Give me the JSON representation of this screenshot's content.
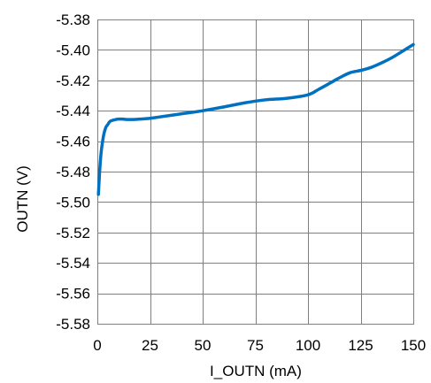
{
  "chart_data": {
    "type": "line",
    "title": "",
    "xlabel": "I_OUTN (mA)",
    "ylabel": "OUTN (V)",
    "xlim": [
      0,
      150
    ],
    "ylim": [
      -5.58,
      -5.38
    ],
    "x_ticks": [
      0,
      25,
      50,
      75,
      100,
      125,
      150
    ],
    "x_tick_labels": [
      "0",
      "25",
      "50",
      "75",
      "100",
      "125",
      "150"
    ],
    "y_ticks": [
      -5.38,
      -5.4,
      -5.42,
      -5.44,
      -5.46,
      -5.48,
      -5.5,
      -5.52,
      -5.54,
      -5.56,
      -5.58
    ],
    "y_tick_labels": [
      "-5.38",
      "-5.40",
      "-5.42",
      "-5.44",
      "-5.46",
      "-5.48",
      "-5.50",
      "-5.52",
      "-5.54",
      "-5.56",
      "-5.58"
    ],
    "grid": true,
    "legend": false,
    "series": [
      {
        "color": "#0070c0",
        "x": [
          0.5,
          1,
          1.5,
          2,
          3,
          4,
          5,
          6,
          8,
          10,
          12,
          15,
          20,
          25,
          30,
          40,
          50,
          60,
          70,
          80,
          90,
          100,
          105,
          110,
          115,
          120,
          125,
          130,
          135,
          140,
          145,
          150
        ],
        "y": [
          -5.495,
          -5.482,
          -5.472,
          -5.465,
          -5.456,
          -5.451,
          -5.449,
          -5.447,
          -5.446,
          -5.4455,
          -5.4455,
          -5.4458,
          -5.4455,
          -5.445,
          -5.444,
          -5.442,
          -5.44,
          -5.4375,
          -5.4348,
          -5.4328,
          -5.4318,
          -5.4295,
          -5.426,
          -5.4222,
          -5.4183,
          -5.415,
          -5.4135,
          -5.4115,
          -5.4085,
          -5.405,
          -5.4008,
          -5.3965
        ]
      }
    ]
  }
}
